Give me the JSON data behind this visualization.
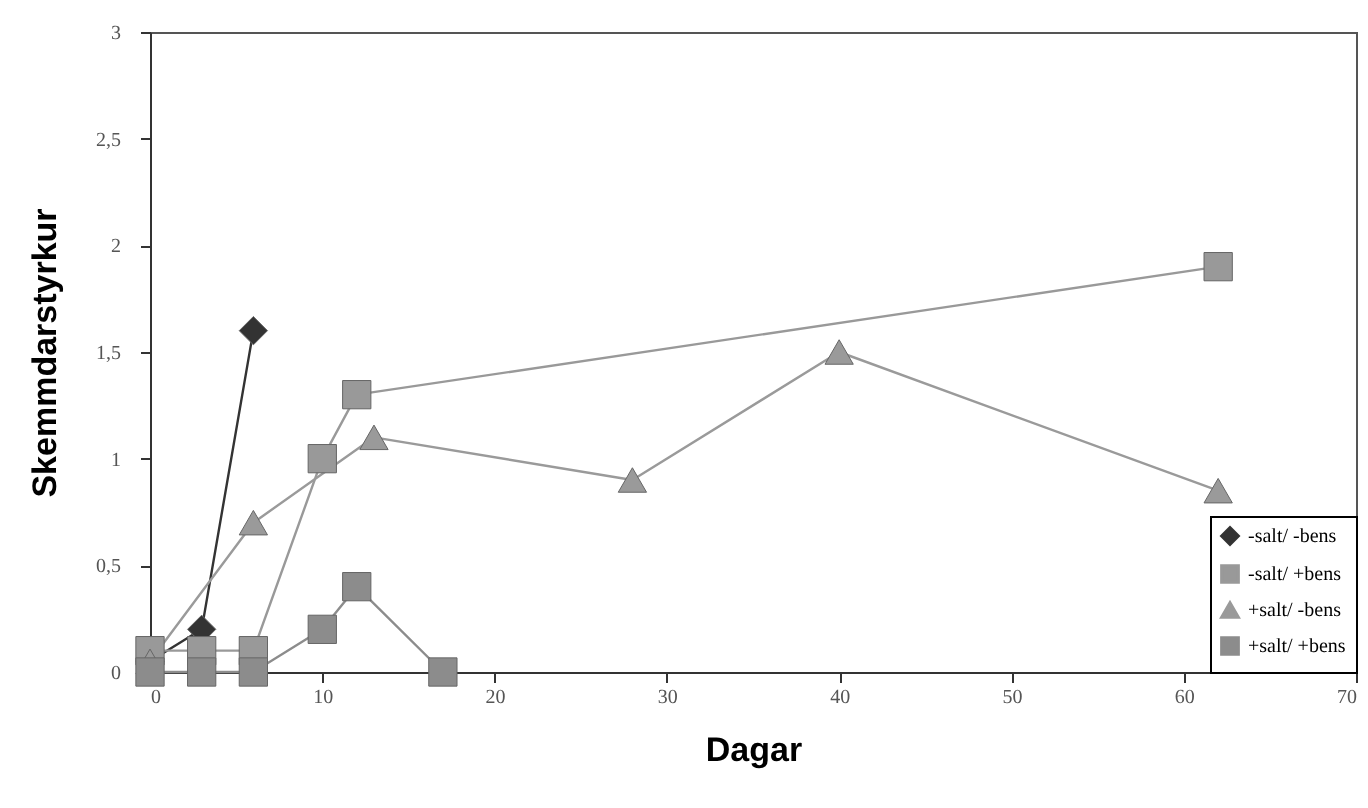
{
  "chart_data": {
    "type": "line",
    "xlabel": "Dagar",
    "ylabel": "Skemmdarstyrkur",
    "xlim": [
      0,
      70
    ],
    "xticks": [
      0,
      10,
      20,
      30,
      40,
      50,
      60,
      70
    ],
    "ylim": [
      0,
      3
    ],
    "yticks": [
      0,
      {
        "value": 0.5,
        "label": "0,5"
      },
      1,
      {
        "value": 1.5,
        "label": "1,5"
      },
      2,
      {
        "value": 2.5,
        "label": "2,5"
      },
      3
    ],
    "grid": false,
    "legend": "bottom right",
    "series": [
      {
        "name": "-salt/ -bens",
        "color": "#333333",
        "marker": "diamond",
        "x": [
          0,
          3,
          6
        ],
        "values": [
          0.05,
          0.2,
          1.6
        ]
      },
      {
        "name": "-salt/ +bens",
        "color": "#999999",
        "marker": "square",
        "x": [
          0,
          3,
          6,
          10,
          12,
          62
        ],
        "values": [
          0.1,
          0.1,
          0.1,
          1.0,
          1.3,
          1.9
        ]
      },
      {
        "name": "+salt/ -bens",
        "color": "#9a9a9a",
        "marker": "triangle",
        "x": [
          0,
          6,
          13,
          28,
          40,
          62
        ],
        "values": [
          0.05,
          0.7,
          1.1,
          0.9,
          1.5,
          0.85
        ]
      },
      {
        "name": "+salt/ +bens",
        "color": "#8c8c8c",
        "marker": "square",
        "x": [
          0,
          3,
          6,
          10,
          12,
          17
        ],
        "values": [
          0,
          0,
          0,
          0.2,
          0.4,
          0
        ]
      }
    ]
  }
}
